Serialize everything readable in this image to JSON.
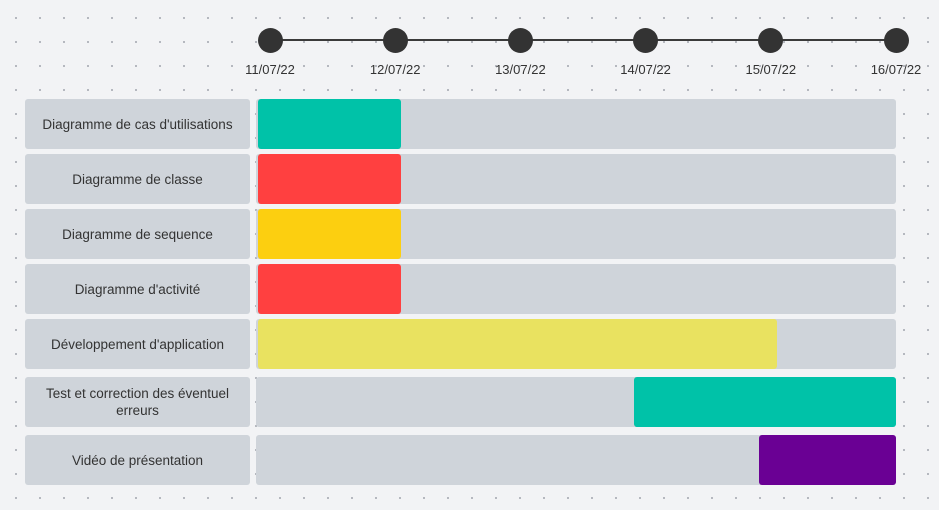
{
  "chart_data": {
    "type": "gantt",
    "dates": [
      "11/07/22",
      "12/07/22",
      "13/07/22",
      "14/07/22",
      "15/07/22",
      "16/07/22"
    ],
    "tasks": [
      {
        "label": "Diagramme de cas d'utilisations",
        "start": "11/07/22",
        "end": "12/07/22",
        "color": "#00c2a8"
      },
      {
        "label": "Diagramme de classe",
        "start": "11/07/22",
        "end": "12/07/22",
        "color": "#ff4040"
      },
      {
        "label": "Diagramme de sequence",
        "start": "11/07/22",
        "end": "12/07/22",
        "color": "#fccf10"
      },
      {
        "label": "Diagramme d'activité",
        "start": "11/07/22",
        "end": "12/07/22",
        "color": "#ff4040"
      },
      {
        "label": "Développement d'application",
        "start": "11/07/22",
        "end": "15/07/22",
        "color": "#e9e260"
      },
      {
        "label": "Test et correction des éventuel erreurs",
        "start": "14/07/22",
        "end": "16/07/22",
        "color": "#00c2a8"
      },
      {
        "label": "Vidéo de présentation",
        "start": "15/07/22",
        "end": "16/07/22",
        "color": "#6a0094"
      }
    ]
  }
}
